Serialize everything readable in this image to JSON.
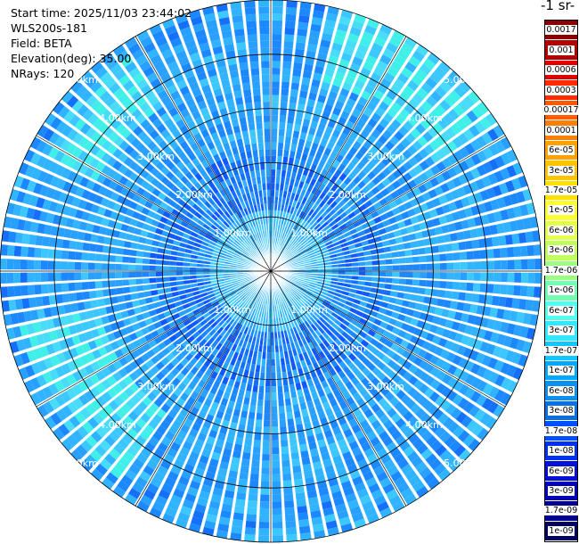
{
  "header": {
    "start_time": "Start time: 2025/11/03 23:44:02",
    "instrument": "WLS200s-181",
    "field": "Field: BETA",
    "elevation": "Elevation(deg): 35.00",
    "nrays": "NRays: 120"
  },
  "colorbar": {
    "units_label": "-1 sr-",
    "ticks": [
      "0.0017",
      "0.001",
      "0.0006",
      "0.0003",
      "0.00017",
      "0.0001",
      "6e-05",
      "3e-05",
      "1.7e-05",
      "1e-05",
      "6e-06",
      "3e-06",
      "1.7e-06",
      "1e-06",
      "6e-07",
      "3e-07",
      "1.7e-07",
      "1e-07",
      "6e-08",
      "3e-08",
      "1.7e-08",
      "1e-08",
      "6e-09",
      "3e-09",
      "1.7e-09",
      "1e-09"
    ],
    "colors": [
      "#8b0000",
      "#b50000",
      "#e00000",
      "#ff2a00",
      "#ff5a00",
      "#ff8000",
      "#ffa200",
      "#ffc400",
      "#ffe000",
      "#ffff30",
      "#e4ff4a",
      "#c0ff5e",
      "#9cff80",
      "#70ffb0",
      "#50fff0",
      "#30e8ff",
      "#10c8ff",
      "#00a8ff",
      "#0a90f0",
      "#0870e0",
      "#0050ff",
      "#0030f0",
      "#0010d8",
      "#0000b8",
      "#000090",
      "#000060"
    ]
  },
  "chart_data": {
    "type": "heatmap",
    "projection": "polar PPI",
    "field": "BETA",
    "elevation_deg": 35.0,
    "n_rays": 120,
    "azimuth_step_deg": 3,
    "range_max_km": 5.0,
    "range_ring_labels": [
      "1.00km",
      "2.00km",
      "3.00km",
      "4.00km",
      "5.00km"
    ],
    "grid": true,
    "colorbar_position": "right",
    "dominant_values_range": [
      "1.7e-08",
      "1e-07"
    ],
    "near_range_value": "3e-08",
    "enhanced_sectors": [
      {
        "azimuth_from_deg": 20,
        "azimuth_to_deg": 50,
        "range_from_km": 3.6,
        "range_to_km": 5.0,
        "value": "1.7e-07"
      },
      {
        "azimuth_from_deg": 220,
        "azimuth_to_deg": 250,
        "range_from_km": 3.2,
        "range_to_km": 4.8,
        "value": "1.7e-07"
      },
      {
        "azimuth_from_deg": 300,
        "azimuth_to_deg": 320,
        "range_from_km": 3.6,
        "range_to_km": 4.8,
        "value": "1e-07"
      }
    ]
  }
}
